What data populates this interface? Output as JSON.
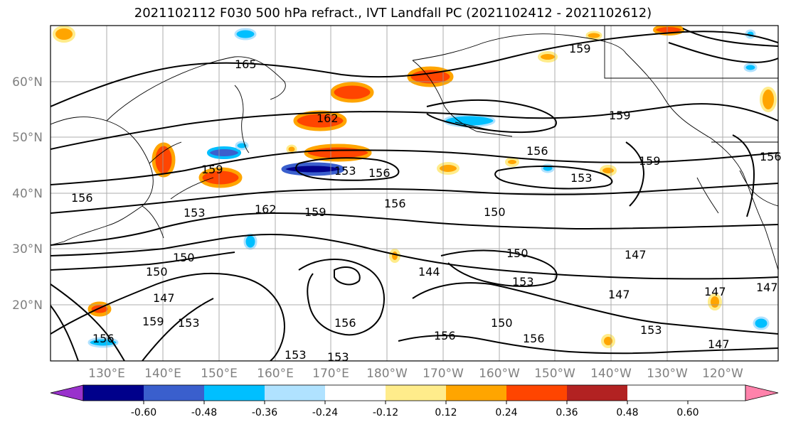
{
  "title": "2021102112 F030 500 hPa refract., IVT Landfall PC (2021102412 - 2021102612)",
  "map": {
    "lat_labels": [
      "60°N",
      "50°N",
      "40°N",
      "30°N",
      "20°N"
    ],
    "lon_labels": [
      "130°E",
      "140°E",
      "150°E",
      "160°E",
      "170°E",
      "180°W",
      "170°W",
      "160°W",
      "150°W",
      "140°W",
      "130°W",
      "120°W"
    ],
    "contour_labels": [
      "165",
      "162",
      "159",
      "156",
      "153",
      "150",
      "147",
      "144",
      "159",
      "156",
      "153",
      "150",
      "147",
      "162",
      "156",
      "159",
      "153",
      "150",
      "147",
      "153",
      "150",
      "147",
      "159",
      "156",
      "153",
      "156",
      "159",
      "156",
      "153",
      "150",
      "147",
      "156",
      "153",
      "147",
      "156",
      "153",
      "159",
      "156"
    ]
  },
  "colorbar": {
    "tick_labels": [
      "-0.60",
      "-0.48",
      "-0.36",
      "-0.24",
      "-0.12",
      "0.12",
      "0.24",
      "0.36",
      "0.48",
      "0.60"
    ],
    "colors": [
      "#9932cc",
      "#00008b",
      "#3a5fcd",
      "#00bfff",
      "#b0e2ff",
      "#ffffff",
      "#ffec8b",
      "#ffa500",
      "#ff4500",
      "#b22222",
      "#ff82ab"
    ]
  }
}
